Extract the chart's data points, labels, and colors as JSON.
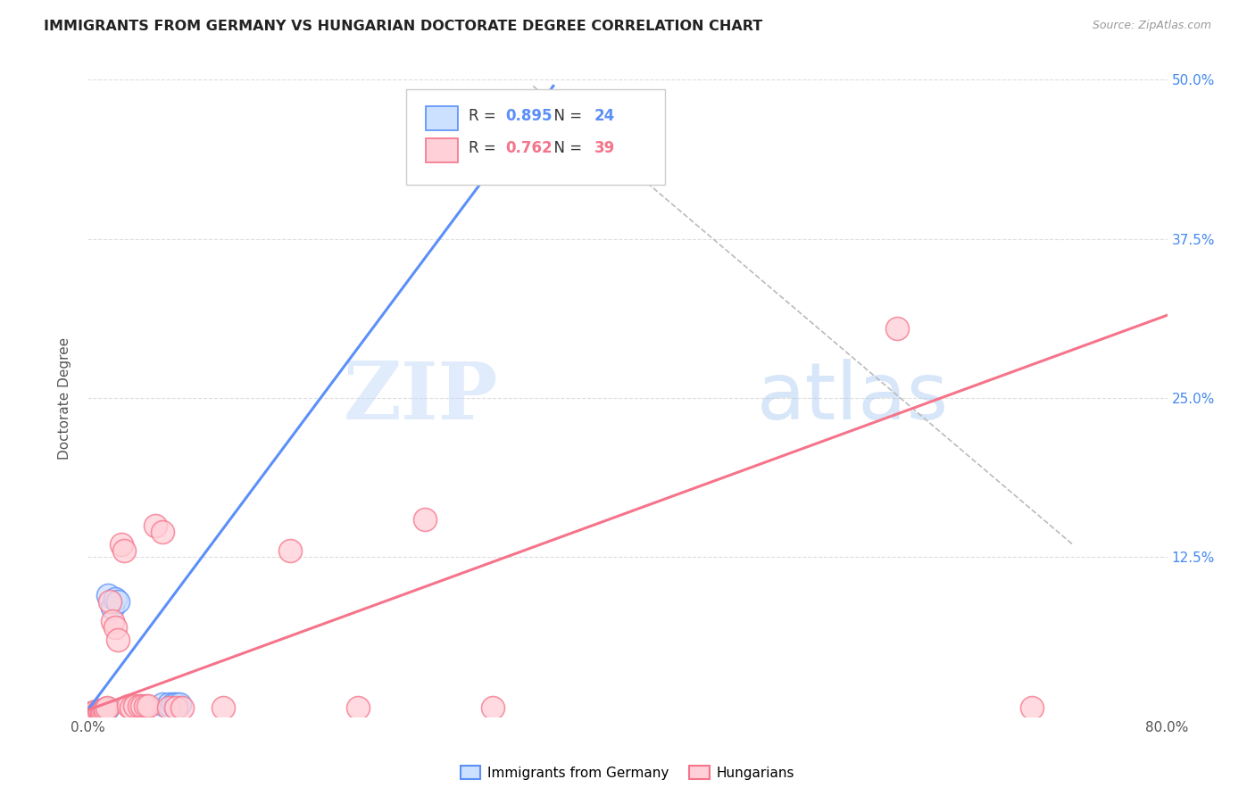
{
  "title": "IMMIGRANTS FROM GERMANY VS HUNGARIAN DOCTORATE DEGREE CORRELATION CHART",
  "source": "Source: ZipAtlas.com",
  "ylabel": "Doctorate Degree",
  "xlim": [
    0.0,
    0.8
  ],
  "ylim": [
    0.0,
    0.5
  ],
  "ytick_positions": [
    0.0,
    0.125,
    0.25,
    0.375,
    0.5
  ],
  "ytick_labels": [
    "",
    "12.5%",
    "25.0%",
    "37.5%",
    "50.0%"
  ],
  "blue_R": 0.895,
  "blue_N": 24,
  "pink_R": 0.762,
  "pink_N": 39,
  "blue_color": "#5b8ff9",
  "pink_color": "#f5748a",
  "blue_label": "Immigrants from Germany",
  "pink_label": "Hungarians",
  "watermark_zip": "ZIP",
  "watermark_atlas": "atlas",
  "blue_scatter": [
    [
      0.001,
      0.002
    ],
    [
      0.002,
      0.003
    ],
    [
      0.003,
      0.001
    ],
    [
      0.004,
      0.002
    ],
    [
      0.005,
      0.003
    ],
    [
      0.006,
      0.002
    ],
    [
      0.007,
      0.004
    ],
    [
      0.008,
      0.003
    ],
    [
      0.009,
      0.003
    ],
    [
      0.01,
      0.004
    ],
    [
      0.011,
      0.005
    ],
    [
      0.012,
      0.004
    ],
    [
      0.013,
      0.005
    ],
    [
      0.014,
      0.006
    ],
    [
      0.015,
      0.095
    ],
    [
      0.018,
      0.085
    ],
    [
      0.02,
      0.092
    ],
    [
      0.022,
      0.09
    ],
    [
      0.055,
      0.01
    ],
    [
      0.06,
      0.01
    ],
    [
      0.063,
      0.01
    ],
    [
      0.065,
      0.01
    ],
    [
      0.068,
      0.01
    ],
    [
      0.33,
      0.46
    ]
  ],
  "pink_scatter": [
    [
      0.001,
      0.001
    ],
    [
      0.002,
      0.002
    ],
    [
      0.003,
      0.003
    ],
    [
      0.004,
      0.002
    ],
    [
      0.005,
      0.003
    ],
    [
      0.006,
      0.004
    ],
    [
      0.007,
      0.003
    ],
    [
      0.008,
      0.004
    ],
    [
      0.009,
      0.005
    ],
    [
      0.01,
      0.003
    ],
    [
      0.011,
      0.004
    ],
    [
      0.012,
      0.005
    ],
    [
      0.013,
      0.006
    ],
    [
      0.014,
      0.007
    ],
    [
      0.016,
      0.09
    ],
    [
      0.018,
      0.075
    ],
    [
      0.02,
      0.07
    ],
    [
      0.022,
      0.06
    ],
    [
      0.025,
      0.135
    ],
    [
      0.027,
      0.13
    ],
    [
      0.03,
      0.008
    ],
    [
      0.032,
      0.007
    ],
    [
      0.035,
      0.008
    ],
    [
      0.038,
      0.008
    ],
    [
      0.04,
      0.008
    ],
    [
      0.043,
      0.008
    ],
    [
      0.045,
      0.008
    ],
    [
      0.05,
      0.15
    ],
    [
      0.055,
      0.145
    ],
    [
      0.06,
      0.007
    ],
    [
      0.065,
      0.007
    ],
    [
      0.07,
      0.007
    ],
    [
      0.1,
      0.007
    ],
    [
      0.15,
      0.13
    ],
    [
      0.2,
      0.007
    ],
    [
      0.25,
      0.155
    ],
    [
      0.3,
      0.007
    ],
    [
      0.6,
      0.305
    ],
    [
      0.7,
      0.007
    ]
  ],
  "blue_line_x": [
    0.0,
    0.345
  ],
  "blue_line_y": [
    0.005,
    0.495
  ],
  "pink_line_x": [
    0.0,
    0.8
  ],
  "pink_line_y": [
    0.005,
    0.315
  ],
  "diag_line_x": [
    0.33,
    0.73
  ],
  "diag_line_y": [
    0.495,
    0.135
  ],
  "grid_color": "#dddddd",
  "right_ytick_color": "#4488ee",
  "legend_blue_text_color": "#4488ee",
  "legend_pink_text_color": "#f5748a"
}
